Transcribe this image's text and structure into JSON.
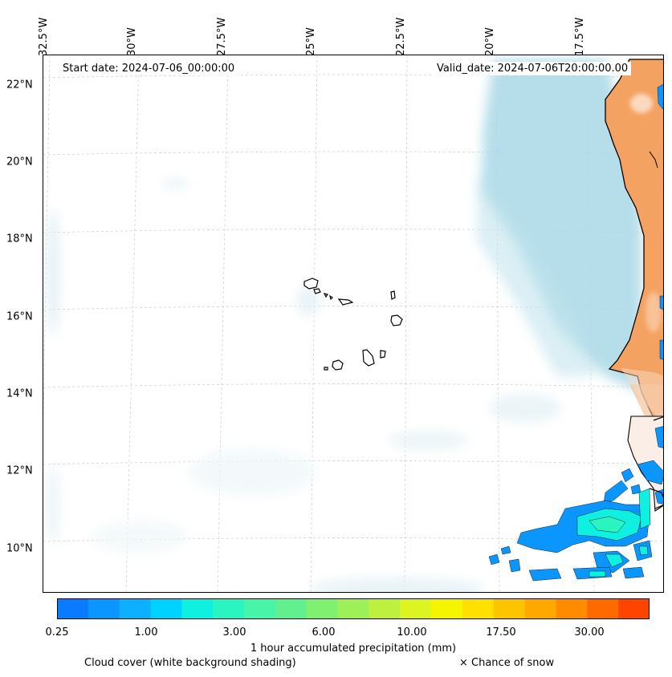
{
  "map": {
    "lon_labels": [
      "32.5°W",
      "30°W",
      "27.5°W",
      "25°W",
      "22.5°W",
      "20°W",
      "17.5°W"
    ],
    "lat_labels": [
      "22°N",
      "20°N",
      "18°N",
      "16°N",
      "14°N",
      "12°N",
      "10°N"
    ],
    "start_date": "Start date: 2024-07-06_00:00:00",
    "valid_date": "Valid_date: 2024-07-06T20:00:00.00"
  },
  "colorbar": {
    "colors": [
      "#0a7bff",
      "#0a95ff",
      "#0cb0ff",
      "#00d2ff",
      "#10f0e0",
      "#2af5c0",
      "#48f5a8",
      "#62f08e",
      "#80f070",
      "#9ef058",
      "#bef040",
      "#dcf520",
      "#f5f500",
      "#ffe000",
      "#ffc400",
      "#ffa800",
      "#ff8c00",
      "#ff6a00",
      "#ff4400"
    ],
    "ticks": [
      "0.25",
      "1.00",
      "3.00",
      "6.00",
      "10.00",
      "17.50",
      "30.00"
    ],
    "label": "1 hour accumulated precipitation (mm)"
  },
  "legend": {
    "cloud_cover": "Cloud cover (white background shading)",
    "snow": "× Chance of snow"
  }
}
